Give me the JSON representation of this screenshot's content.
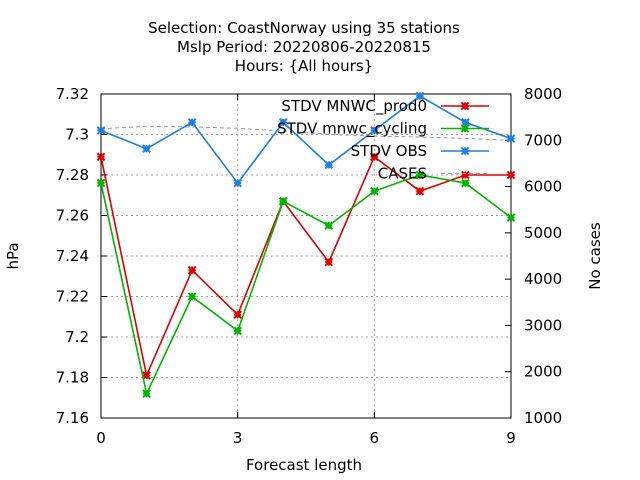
{
  "chart_data": {
    "type": "line",
    "title_lines": [
      "Selection: CoastNorway using    35 stations",
      "Mslp   Period: 20220806-20220815",
      "Hours: {All hours}"
    ],
    "xlabel": "Forecast length",
    "ylabel": "hPa",
    "y2label": "No cases",
    "xlim": [
      0,
      9
    ],
    "ylim": [
      7.16,
      7.32
    ],
    "y2lim": [
      1000,
      8000
    ],
    "xticks": [
      "0",
      "3",
      "6",
      "9"
    ],
    "yticks": [
      "7.16",
      "7.18",
      "7.2",
      "7.22",
      "7.24",
      "7.26",
      "7.28",
      "7.3",
      "7.32"
    ],
    "y2ticks": [
      "1000",
      "2000",
      "3000",
      "4000",
      "5000",
      "6000",
      "7000",
      "8000"
    ],
    "grid": true,
    "legend_position": "top-right",
    "x": [
      0,
      1,
      2,
      3,
      4,
      5,
      6,
      7,
      8,
      9
    ],
    "series": [
      {
        "name": "STDV MNWC_prod0",
        "color": "#dd0000",
        "axis": "left",
        "values": [
          7.289,
          7.181,
          7.233,
          7.211,
          7.267,
          7.237,
          7.289,
          7.272,
          7.28,
          7.28
        ]
      },
      {
        "name": "STDV mnwc_cycling",
        "color": "#00b400",
        "axis": "left",
        "values": [
          7.276,
          7.172,
          7.22,
          7.203,
          7.267,
          7.255,
          7.272,
          7.28,
          7.276,
          7.259
        ]
      },
      {
        "name": "STDV OBS",
        "color": "#1e7fe0",
        "axis": "left",
        "values": [
          7.302,
          7.293,
          7.306,
          7.276,
          7.306,
          7.285,
          7.302,
          7.319,
          7.306,
          7.298
        ]
      },
      {
        "name": "CASES",
        "color": "#999999",
        "axis": "right",
        "dashed": true,
        "values": [
          7250,
          7300,
          7290,
          7260,
          7200,
          7130,
          7090,
          7070,
          7040,
          7000
        ]
      }
    ]
  }
}
